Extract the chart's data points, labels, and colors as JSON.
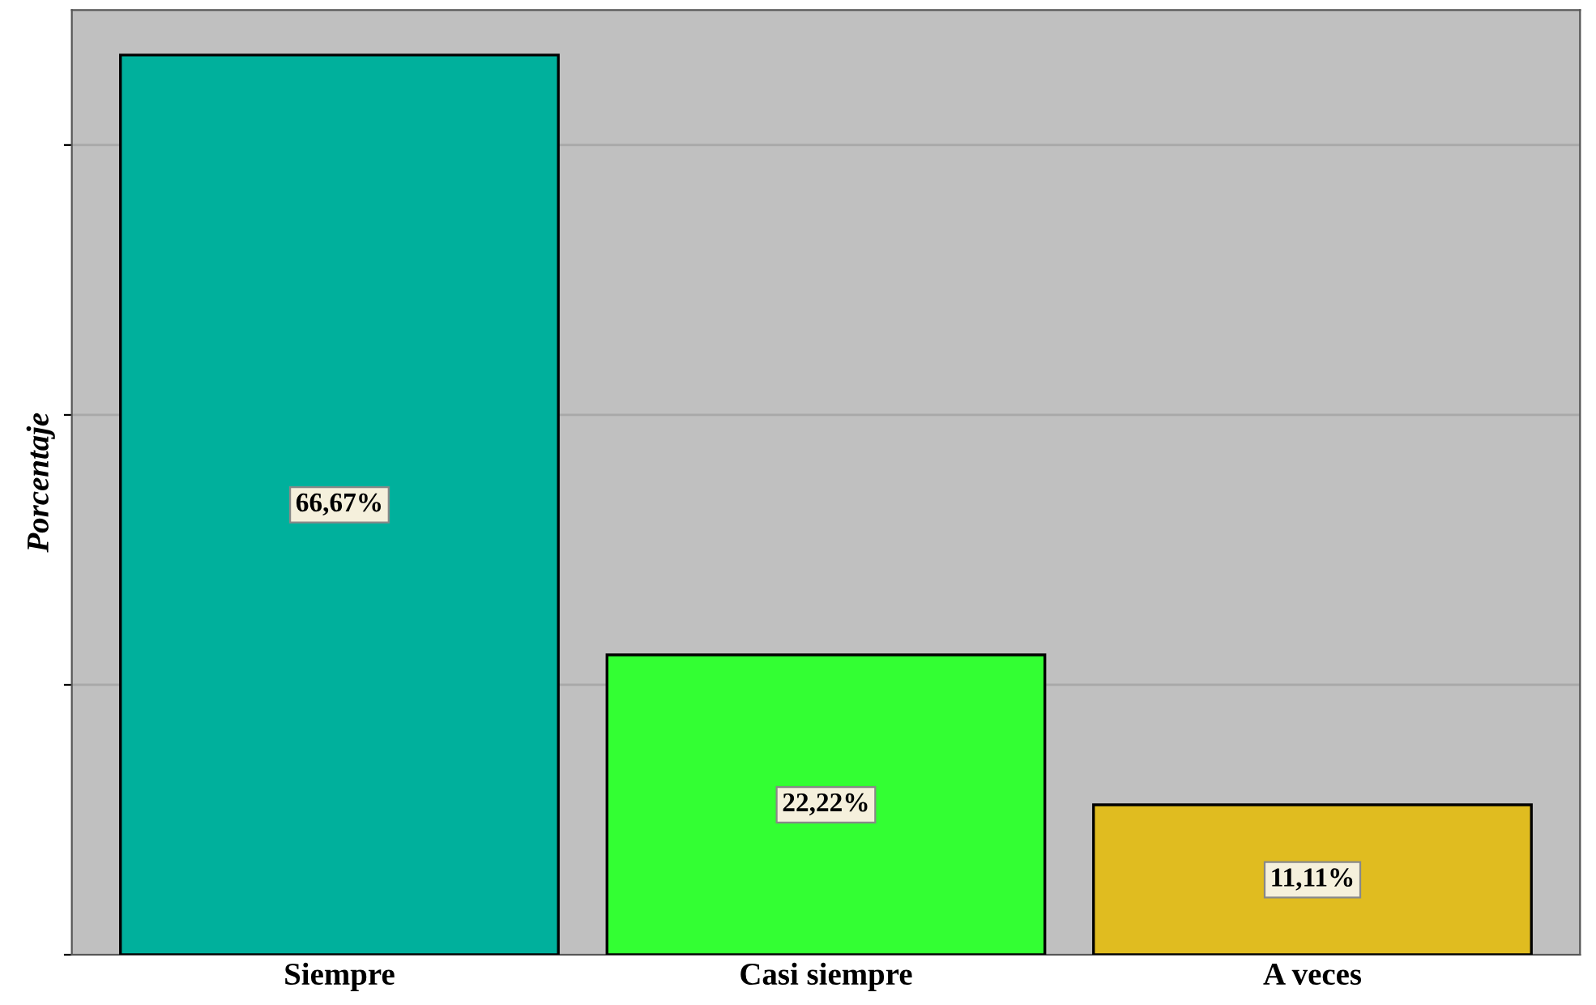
{
  "chart_data": {
    "type": "bar",
    "ylabel": "Porcentaje",
    "categories": [
      "Siempre",
      "Casi siempre",
      "A veces"
    ],
    "values": [
      66.67,
      22.22,
      11.11
    ],
    "colors": [
      "#00b09c",
      "#33ff33",
      "#e0bc20"
    ],
    "value_labels": [
      "66,67%",
      "22,22%",
      "11,11%"
    ],
    "ylim": [
      0,
      70
    ],
    "yticks": [
      {
        "value": 0,
        "label": null
      },
      {
        "value": 20,
        "label": null
      },
      {
        "value": 40,
        "label": null
      },
      {
        "value": 60,
        "label": null
      }
    ],
    "tick_labels": "x",
    "grid": "y"
  }
}
